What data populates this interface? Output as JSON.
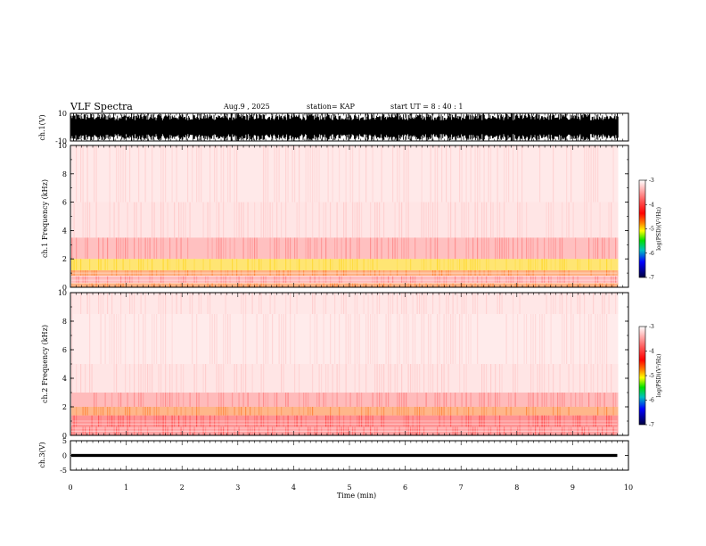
{
  "header": {
    "title": "VLF Spectra",
    "date": "Aug.9  , 2025",
    "station": "station= KAP",
    "start_ut": "start  UT  =   8  : 40 : 1"
  },
  "chart_data": [
    {
      "type": "line",
      "panel": "ch1-waveform",
      "ylabel": "ch.1(V)",
      "ylim": [
        -10,
        10
      ],
      "yticks": [
        "10",
        "-10"
      ],
      "xlim": [
        0,
        10
      ],
      "note_data": "saturated waveform spanning -10 to 10 V across 0-9.8 min"
    },
    {
      "type": "heatmap",
      "panel": "ch1-spectrogram",
      "ylabel": "ch.1 Frequency (kHz)",
      "ylim": [
        0,
        10
      ],
      "yticks": [
        "0",
        "2",
        "4",
        "6",
        "8",
        "10"
      ],
      "xlim": [
        0,
        10
      ],
      "data_end_min": 9.8,
      "bands": [
        {
          "from_khz": 0.0,
          "to_khz": 0.3,
          "level": -4.0
        },
        {
          "from_khz": 0.3,
          "to_khz": 0.8,
          "level": -3.5
        },
        {
          "from_khz": 0.8,
          "to_khz": 1.2,
          "level": -4.0
        },
        {
          "from_khz": 1.2,
          "to_khz": 2.0,
          "level": -4.3
        },
        {
          "from_khz": 2.0,
          "to_khz": 3.5,
          "level": -3.4
        },
        {
          "from_khz": 3.5,
          "to_khz": 6.0,
          "level": -3.2
        },
        {
          "from_khz": 6.0,
          "to_khz": 10.0,
          "level": -3.1
        }
      ],
      "colorbar": {
        "label": "log(PSD)(V²/Hz)",
        "ticks": [
          "-3",
          "-4",
          "-5",
          "-6",
          "-7"
        ],
        "range": [
          -7,
          -3
        ]
      }
    },
    {
      "type": "heatmap",
      "panel": "ch2-spectrogram",
      "ylabel": "ch.2 Frequency (kHz)",
      "ylim": [
        0,
        10
      ],
      "yticks": [
        "0",
        "2",
        "4",
        "6",
        "8",
        "10"
      ],
      "xlim": [
        0,
        10
      ],
      "data_end_min": 9.8,
      "bands": [
        {
          "from_khz": 0.0,
          "to_khz": 0.6,
          "level": -3.6
        },
        {
          "from_khz": 0.6,
          "to_khz": 1.4,
          "level": -3.8
        },
        {
          "from_khz": 1.4,
          "to_khz": 2.0,
          "level": -3.9
        },
        {
          "from_khz": 2.0,
          "to_khz": 3.0,
          "level": -3.5
        },
        {
          "from_khz": 3.0,
          "to_khz": 5.0,
          "level": -3.2
        },
        {
          "from_khz": 5.0,
          "to_khz": 8.5,
          "level": -3.05
        },
        {
          "from_khz": 8.5,
          "to_khz": 10.0,
          "level": -3.15
        }
      ],
      "colorbar": {
        "label": "log(PSD)(V²/Hz)",
        "ticks": [
          "-3",
          "-4",
          "-5",
          "-6",
          "-7"
        ],
        "range": [
          -7,
          -3
        ]
      }
    },
    {
      "type": "line",
      "panel": "ch3-waveform",
      "ylabel": "ch.3(V)",
      "ylim": [
        -5,
        5
      ],
      "yticks": [
        "5",
        "0",
        "-5"
      ],
      "xlim": [
        0,
        10
      ],
      "xlabel": "Time  (min)",
      "xticks": [
        "0",
        "1",
        "2",
        "3",
        "4",
        "5",
        "6",
        "7",
        "8",
        "9",
        "10"
      ],
      "note_data": "narrow noise band near 0 V across 0-9.8 min"
    }
  ],
  "colors": {
    "axis": "#000000",
    "spec_red": "#ff0000",
    "spec_yellow": "#ffff00",
    "spec_green": "#00d000",
    "background": "#ffffff"
  }
}
